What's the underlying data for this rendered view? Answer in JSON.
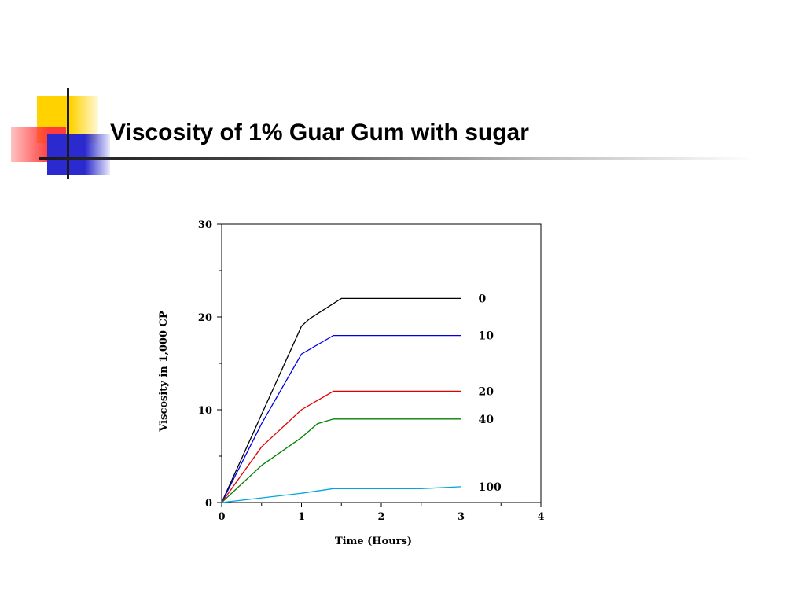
{
  "slide": {
    "title": "Viscosity of 1% Guar Gum with sugar"
  },
  "chart_data": {
    "type": "line",
    "title": "",
    "xlabel": "Time (Hours)",
    "ylabel": "Viscosity in 1,000 CP",
    "xlim": [
      0,
      4
    ],
    "ylim": [
      0,
      30
    ],
    "xticks": [
      "0",
      "1",
      "2",
      "3",
      "4"
    ],
    "yticks": [
      "0",
      "10",
      "20",
      "30"
    ],
    "grid": false,
    "series": [
      {
        "name": "0",
        "color": "#000000",
        "points": [
          [
            0,
            0
          ],
          [
            0.5,
            9.5
          ],
          [
            1.0,
            19.0
          ],
          [
            1.1,
            19.8
          ],
          [
            1.5,
            22.0
          ],
          [
            3.0,
            22.0
          ]
        ]
      },
      {
        "name": "10",
        "color": "#0000e0",
        "points": [
          [
            0,
            0
          ],
          [
            0.5,
            8.5
          ],
          [
            1.0,
            16.0
          ],
          [
            1.4,
            18.0
          ],
          [
            3.0,
            18.0
          ]
        ]
      },
      {
        "name": "20",
        "color": "#e00000",
        "points": [
          [
            0,
            0
          ],
          [
            0.5,
            6.0
          ],
          [
            1.0,
            10.0
          ],
          [
            1.4,
            12.0
          ],
          [
            3.0,
            12.0
          ]
        ]
      },
      {
        "name": "40",
        "color": "#008000",
        "points": [
          [
            0,
            0
          ],
          [
            0.5,
            4.0
          ],
          [
            1.0,
            7.0
          ],
          [
            1.2,
            8.5
          ],
          [
            1.4,
            9.0
          ],
          [
            3.0,
            9.0
          ]
        ]
      },
      {
        "name": "100",
        "color": "#00a6e0",
        "points": [
          [
            0,
            0
          ],
          [
            0.5,
            0.5
          ],
          [
            1.0,
            1.0
          ],
          [
            1.4,
            1.5
          ],
          [
            2.5,
            1.5
          ],
          [
            3.0,
            1.7
          ]
        ]
      }
    ]
  }
}
